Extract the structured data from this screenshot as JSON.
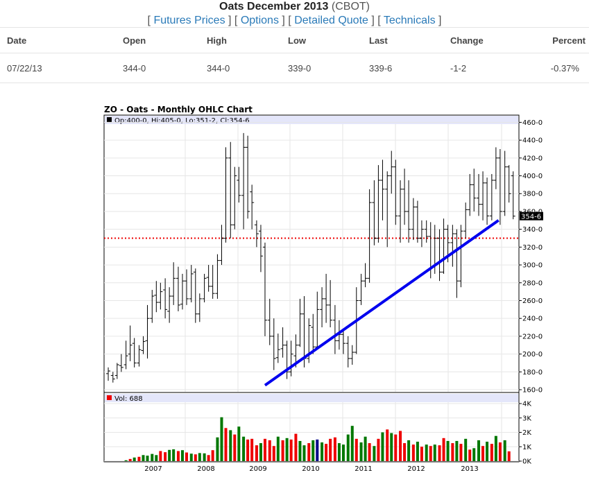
{
  "header": {
    "title": "Oats December 2013",
    "exchange": "(CBOT)",
    "links": [
      {
        "label": "Futures Prices"
      },
      {
        "label": "Options"
      },
      {
        "label": "Detailed Quote"
      },
      {
        "label": "Technicals"
      }
    ]
  },
  "quote": {
    "columns": [
      "Date",
      "Open",
      "High",
      "Low",
      "Last",
      "Change",
      "Percent"
    ],
    "row": {
      "date": "07/22/13",
      "open": "344-0",
      "high": "344-0",
      "low": "339-0",
      "last": "339-6",
      "change": "-1-2",
      "percent": "-0.37%"
    }
  },
  "colors": {
    "up": "#007700",
    "down": "#ee0000",
    "accent": "#0000ee",
    "link": "#2a7ab8",
    "ref_line": "#ee0000"
  },
  "chart_data": {
    "type": "ohlc",
    "title": "ZO - Oats - Monthly OHLC Chart",
    "info_label": "Op:400-0, Hi:405-0, Lo:351-2, Cl:354-6",
    "last_label": "354-6",
    "y_ticks": [
      "160-0",
      "180-0",
      "200-0",
      "220-0",
      "240-0",
      "260-0",
      "280-0",
      "300-0",
      "320-0",
      "340-0",
      "360-0",
      "380-0",
      "400-0",
      "420-0",
      "440-0",
      "460-0"
    ],
    "ylim": [
      160,
      465
    ],
    "year_labels": [
      "2007",
      "2008",
      "2009",
      "2010",
      "2011",
      "2012",
      "2013"
    ],
    "reference_line": 330,
    "trendline": [
      [
        2009.08,
        165
      ],
      [
        2013.55,
        350
      ]
    ],
    "bars": [
      {
        "t": 2006.08,
        "o": 178,
        "h": 185,
        "l": 170,
        "c": 181
      },
      {
        "t": 2006.17,
        "o": 176,
        "h": 180,
        "l": 168,
        "c": 172
      },
      {
        "t": 2006.25,
        "o": 176,
        "h": 190,
        "l": 172,
        "c": 188
      },
      {
        "t": 2006.33,
        "o": 187,
        "h": 200,
        "l": 180,
        "c": 185
      },
      {
        "t": 2006.42,
        "o": 188,
        "h": 215,
        "l": 183,
        "c": 198
      },
      {
        "t": 2006.5,
        "o": 200,
        "h": 232,
        "l": 192,
        "c": 210
      },
      {
        "t": 2006.58,
        "o": 212,
        "h": 218,
        "l": 185,
        "c": 190
      },
      {
        "t": 2006.67,
        "o": 190,
        "h": 210,
        "l": 186,
        "c": 205
      },
      {
        "t": 2006.75,
        "o": 204,
        "h": 220,
        "l": 200,
        "c": 214
      },
      {
        "t": 2006.83,
        "o": 215,
        "h": 255,
        "l": 195,
        "c": 240
      },
      {
        "t": 2006.92,
        "o": 240,
        "h": 272,
        "l": 235,
        "c": 265
      },
      {
        "t": 2007.0,
        "o": 266,
        "h": 282,
        "l": 247,
        "c": 258
      },
      {
        "t": 2007.08,
        "o": 258,
        "h": 280,
        "l": 250,
        "c": 270
      },
      {
        "t": 2007.17,
        "o": 272,
        "h": 285,
        "l": 240,
        "c": 250
      },
      {
        "t": 2007.25,
        "o": 248,
        "h": 275,
        "l": 235,
        "c": 265
      },
      {
        "t": 2007.33,
        "o": 265,
        "h": 303,
        "l": 255,
        "c": 285
      },
      {
        "t": 2007.42,
        "o": 285,
        "h": 298,
        "l": 248,
        "c": 255
      },
      {
        "t": 2007.5,
        "o": 256,
        "h": 290,
        "l": 250,
        "c": 282
      },
      {
        "t": 2007.58,
        "o": 282,
        "h": 295,
        "l": 255,
        "c": 262
      },
      {
        "t": 2007.67,
        "o": 262,
        "h": 300,
        "l": 258,
        "c": 290
      },
      {
        "t": 2007.75,
        "o": 292,
        "h": 296,
        "l": 235,
        "c": 245
      },
      {
        "t": 2007.83,
        "o": 245,
        "h": 268,
        "l": 236,
        "c": 262
      },
      {
        "t": 2007.92,
        "o": 262,
        "h": 290,
        "l": 258,
        "c": 285
      },
      {
        "t": 2008.0,
        "o": 286,
        "h": 300,
        "l": 270,
        "c": 276
      },
      {
        "t": 2008.08,
        "o": 276,
        "h": 300,
        "l": 262,
        "c": 268
      },
      {
        "t": 2008.17,
        "o": 268,
        "h": 312,
        "l": 262,
        "c": 305
      },
      {
        "t": 2008.25,
        "o": 305,
        "h": 345,
        "l": 300,
        "c": 330
      },
      {
        "t": 2008.33,
        "o": 330,
        "h": 432,
        "l": 325,
        "c": 420
      },
      {
        "t": 2008.42,
        "o": 420,
        "h": 438,
        "l": 330,
        "c": 345
      },
      {
        "t": 2008.5,
        "o": 345,
        "h": 410,
        "l": 340,
        "c": 400
      },
      {
        "t": 2008.58,
        "o": 395,
        "h": 410,
        "l": 370,
        "c": 378
      },
      {
        "t": 2008.67,
        "o": 378,
        "h": 448,
        "l": 340,
        "c": 432
      },
      {
        "t": 2008.75,
        "o": 432,
        "h": 445,
        "l": 352,
        "c": 360
      },
      {
        "t": 2008.83,
        "o": 382,
        "h": 390,
        "l": 340,
        "c": 370
      },
      {
        "t": 2008.92,
        "o": 345,
        "h": 350,
        "l": 320,
        "c": 335
      },
      {
        "t": 2009.0,
        "o": 338,
        "h": 345,
        "l": 292,
        "c": 310
      },
      {
        "t": 2009.08,
        "o": 320,
        "h": 325,
        "l": 220,
        "c": 238
      },
      {
        "t": 2009.17,
        "o": 238,
        "h": 262,
        "l": 210,
        "c": 220
      },
      {
        "t": 2009.25,
        "o": 220,
        "h": 240,
        "l": 182,
        "c": 195
      },
      {
        "t": 2009.33,
        "o": 196,
        "h": 223,
        "l": 190,
        "c": 205
      },
      {
        "t": 2009.42,
        "o": 206,
        "h": 230,
        "l": 196,
        "c": 210
      },
      {
        "t": 2009.5,
        "o": 210,
        "h": 215,
        "l": 172,
        "c": 180
      },
      {
        "t": 2009.58,
        "o": 180,
        "h": 215,
        "l": 175,
        "c": 200
      },
      {
        "t": 2009.67,
        "o": 198,
        "h": 222,
        "l": 185,
        "c": 210
      },
      {
        "t": 2009.75,
        "o": 210,
        "h": 262,
        "l": 208,
        "c": 245
      },
      {
        "t": 2009.83,
        "o": 245,
        "h": 265,
        "l": 185,
        "c": 195
      },
      {
        "t": 2009.92,
        "o": 195,
        "h": 240,
        "l": 190,
        "c": 232
      },
      {
        "t": 2010.0,
        "o": 230,
        "h": 245,
        "l": 200,
        "c": 208
      },
      {
        "t": 2010.08,
        "o": 208,
        "h": 270,
        "l": 205,
        "c": 250
      },
      {
        "t": 2010.17,
        "o": 250,
        "h": 275,
        "l": 230,
        "c": 262
      },
      {
        "t": 2010.25,
        "o": 262,
        "h": 290,
        "l": 235,
        "c": 255
      },
      {
        "t": 2010.33,
        "o": 255,
        "h": 283,
        "l": 230,
        "c": 238
      },
      {
        "t": 2010.42,
        "o": 238,
        "h": 255,
        "l": 200,
        "c": 215
      },
      {
        "t": 2010.5,
        "o": 215,
        "h": 238,
        "l": 205,
        "c": 222
      },
      {
        "t": 2010.58,
        "o": 222,
        "h": 226,
        "l": 200,
        "c": 212
      },
      {
        "t": 2010.67,
        "o": 212,
        "h": 220,
        "l": 185,
        "c": 195
      },
      {
        "t": 2010.75,
        "o": 195,
        "h": 210,
        "l": 188,
        "c": 202
      },
      {
        "t": 2010.83,
        "o": 202,
        "h": 275,
        "l": 200,
        "c": 260
      },
      {
        "t": 2010.92,
        "o": 260,
        "h": 290,
        "l": 255,
        "c": 282
      },
      {
        "t": 2011.0,
        "o": 282,
        "h": 302,
        "l": 275,
        "c": 285
      },
      {
        "t": 2011.08,
        "o": 285,
        "h": 385,
        "l": 280,
        "c": 370
      },
      {
        "t": 2011.17,
        "o": 370,
        "h": 395,
        "l": 322,
        "c": 330
      },
      {
        "t": 2011.25,
        "o": 330,
        "h": 412,
        "l": 325,
        "c": 395
      },
      {
        "t": 2011.33,
        "o": 395,
        "h": 418,
        "l": 350,
        "c": 385
      },
      {
        "t": 2011.42,
        "o": 385,
        "h": 405,
        "l": 320,
        "c": 400
      },
      {
        "t": 2011.5,
        "o": 400,
        "h": 428,
        "l": 380,
        "c": 410
      },
      {
        "t": 2011.58,
        "o": 410,
        "h": 418,
        "l": 345,
        "c": 355
      },
      {
        "t": 2011.67,
        "o": 355,
        "h": 395,
        "l": 325,
        "c": 385
      },
      {
        "t": 2011.75,
        "o": 385,
        "h": 408,
        "l": 345,
        "c": 360
      },
      {
        "t": 2011.83,
        "o": 360,
        "h": 395,
        "l": 325,
        "c": 340
      },
      {
        "t": 2011.92,
        "o": 340,
        "h": 375,
        "l": 328,
        "c": 365
      },
      {
        "t": 2012.0,
        "o": 365,
        "h": 372,
        "l": 325,
        "c": 330
      },
      {
        "t": 2012.08,
        "o": 330,
        "h": 350,
        "l": 320,
        "c": 340
      },
      {
        "t": 2012.17,
        "o": 340,
        "h": 350,
        "l": 325,
        "c": 332
      },
      {
        "t": 2012.25,
        "o": 332,
        "h": 348,
        "l": 285,
        "c": 298
      },
      {
        "t": 2012.33,
        "o": 298,
        "h": 345,
        "l": 290,
        "c": 330
      },
      {
        "t": 2012.42,
        "o": 330,
        "h": 340,
        "l": 282,
        "c": 292
      },
      {
        "t": 2012.5,
        "o": 292,
        "h": 352,
        "l": 290,
        "c": 340
      },
      {
        "t": 2012.58,
        "o": 340,
        "h": 345,
        "l": 303,
        "c": 325
      },
      {
        "t": 2012.67,
        "o": 325,
        "h": 345,
        "l": 298,
        "c": 335
      },
      {
        "t": 2012.75,
        "o": 335,
        "h": 340,
        "l": 263,
        "c": 282
      },
      {
        "t": 2012.83,
        "o": 282,
        "h": 345,
        "l": 275,
        "c": 338
      },
      {
        "t": 2012.92,
        "o": 338,
        "h": 370,
        "l": 330,
        "c": 362
      },
      {
        "t": 2013.0,
        "o": 362,
        "h": 402,
        "l": 355,
        "c": 390
      },
      {
        "t": 2013.08,
        "o": 390,
        "h": 408,
        "l": 360,
        "c": 375
      },
      {
        "t": 2013.17,
        "o": 375,
        "h": 402,
        "l": 355,
        "c": 368
      },
      {
        "t": 2013.25,
        "o": 368,
        "h": 405,
        "l": 350,
        "c": 392
      },
      {
        "t": 2013.33,
        "o": 392,
        "h": 398,
        "l": 345,
        "c": 355
      },
      {
        "t": 2013.42,
        "o": 355,
        "h": 402,
        "l": 350,
        "c": 395
      },
      {
        "t": 2013.5,
        "o": 395,
        "h": 432,
        "l": 385,
        "c": 420
      },
      {
        "t": 2013.58,
        "o": 420,
        "h": 430,
        "l": 345,
        "c": 360
      },
      {
        "t": 2013.67,
        "o": 360,
        "h": 428,
        "l": 355,
        "c": 410
      },
      {
        "t": 2013.75,
        "o": 410,
        "h": 412,
        "l": 370,
        "c": 380
      },
      {
        "t": 2013.83,
        "o": 400,
        "h": 405,
        "l": 351.25,
        "c": 354.75
      }
    ],
    "volume": {
      "label": "Vol: 688",
      "y_ticks": [
        "0K",
        "1K",
        "2K",
        "3K",
        "4K"
      ],
      "ylim": [
        0,
        4000
      ],
      "values": [
        {
          "t": 2006.42,
          "v": 60,
          "up": true
        },
        {
          "t": 2006.5,
          "v": 150,
          "up": false
        },
        {
          "t": 2006.58,
          "v": 250,
          "up": true
        },
        {
          "t": 2006.67,
          "v": 300,
          "up": false
        },
        {
          "t": 2006.75,
          "v": 420,
          "up": true
        },
        {
          "t": 2006.83,
          "v": 380,
          "up": true
        },
        {
          "t": 2006.92,
          "v": 500,
          "up": true
        },
        {
          "t": 2007.0,
          "v": 420,
          "up": true
        },
        {
          "t": 2007.08,
          "v": 700,
          "up": false
        },
        {
          "t": 2007.17,
          "v": 620,
          "up": false
        },
        {
          "t": 2007.25,
          "v": 780,
          "up": true
        },
        {
          "t": 2007.33,
          "v": 820,
          "up": true
        },
        {
          "t": 2007.42,
          "v": 700,
          "up": false
        },
        {
          "t": 2007.5,
          "v": 760,
          "up": true
        },
        {
          "t": 2007.58,
          "v": 600,
          "up": false
        },
        {
          "t": 2007.67,
          "v": 520,
          "up": true
        },
        {
          "t": 2007.75,
          "v": 470,
          "up": false
        },
        {
          "t": 2007.83,
          "v": 560,
          "up": true
        },
        {
          "t": 2007.92,
          "v": 540,
          "up": true
        },
        {
          "t": 2008.0,
          "v": 420,
          "up": false
        },
        {
          "t": 2008.08,
          "v": 760,
          "up": false
        },
        {
          "t": 2008.17,
          "v": 1650,
          "up": true
        },
        {
          "t": 2008.25,
          "v": 3050,
          "up": true
        },
        {
          "t": 2008.33,
          "v": 2300,
          "up": false
        },
        {
          "t": 2008.42,
          "v": 2150,
          "up": true
        },
        {
          "t": 2008.5,
          "v": 1850,
          "up": false
        },
        {
          "t": 2008.58,
          "v": 2400,
          "up": true
        },
        {
          "t": 2008.67,
          "v": 1700,
          "up": true
        },
        {
          "t": 2008.75,
          "v": 1500,
          "up": false
        },
        {
          "t": 2008.83,
          "v": 1550,
          "up": false
        },
        {
          "t": 2008.92,
          "v": 1100,
          "up": false
        },
        {
          "t": 2009.0,
          "v": 1250,
          "up": true
        },
        {
          "t": 2009.08,
          "v": 1550,
          "up": false
        },
        {
          "t": 2009.17,
          "v": 1450,
          "up": false
        },
        {
          "t": 2009.25,
          "v": 1050,
          "up": false
        },
        {
          "t": 2009.33,
          "v": 1700,
          "up": true
        },
        {
          "t": 2009.42,
          "v": 1450,
          "up": false
        },
        {
          "t": 2009.5,
          "v": 1600,
          "up": true
        },
        {
          "t": 2009.58,
          "v": 1500,
          "up": false
        },
        {
          "t": 2009.67,
          "v": 1900,
          "up": false
        },
        {
          "t": 2009.75,
          "v": 1400,
          "up": true
        },
        {
          "t": 2009.83,
          "v": 1100,
          "up": true
        },
        {
          "t": 2009.92,
          "v": 1250,
          "up": false
        },
        {
          "t": 2010.0,
          "v": 1450,
          "up": true
        },
        {
          "t": 2010.08,
          "v": 1500,
          "up": true,
          "blue": true
        },
        {
          "t": 2010.17,
          "v": 1300,
          "up": true
        },
        {
          "t": 2010.25,
          "v": 1200,
          "up": false
        },
        {
          "t": 2010.33,
          "v": 1550,
          "up": false
        },
        {
          "t": 2010.42,
          "v": 1650,
          "up": false
        },
        {
          "t": 2010.5,
          "v": 1250,
          "up": true
        },
        {
          "t": 2010.58,
          "v": 1150,
          "up": true
        },
        {
          "t": 2010.67,
          "v": 1850,
          "up": true
        },
        {
          "t": 2010.75,
          "v": 2450,
          "up": true
        },
        {
          "t": 2010.83,
          "v": 1550,
          "up": false
        },
        {
          "t": 2010.92,
          "v": 1300,
          "up": true
        },
        {
          "t": 2011.0,
          "v": 1700,
          "up": true
        },
        {
          "t": 2011.08,
          "v": 1250,
          "up": false
        },
        {
          "t": 2011.17,
          "v": 1050,
          "up": true
        },
        {
          "t": 2011.25,
          "v": 1550,
          "up": false
        },
        {
          "t": 2011.33,
          "v": 2000,
          "up": true
        },
        {
          "t": 2011.42,
          "v": 2200,
          "up": false
        },
        {
          "t": 2011.5,
          "v": 1950,
          "up": true
        },
        {
          "t": 2011.58,
          "v": 1850,
          "up": false
        },
        {
          "t": 2011.67,
          "v": 2100,
          "up": false
        },
        {
          "t": 2011.75,
          "v": 1250,
          "up": false
        },
        {
          "t": 2011.83,
          "v": 1450,
          "up": true
        },
        {
          "t": 2011.92,
          "v": 1150,
          "up": false
        },
        {
          "t": 2012.0,
          "v": 1350,
          "up": true
        },
        {
          "t": 2012.08,
          "v": 1000,
          "up": false
        },
        {
          "t": 2012.17,
          "v": 1150,
          "up": true
        },
        {
          "t": 2012.25,
          "v": 1050,
          "up": false
        },
        {
          "t": 2012.33,
          "v": 1150,
          "up": true
        },
        {
          "t": 2012.42,
          "v": 1100,
          "up": false
        },
        {
          "t": 2012.5,
          "v": 1600,
          "up": false
        },
        {
          "t": 2012.58,
          "v": 1400,
          "up": true
        },
        {
          "t": 2012.67,
          "v": 1250,
          "up": false
        },
        {
          "t": 2012.75,
          "v": 1400,
          "up": true
        },
        {
          "t": 2012.83,
          "v": 1200,
          "up": false
        },
        {
          "t": 2012.92,
          "v": 1550,
          "up": true
        },
        {
          "t": 2013.0,
          "v": 800,
          "up": false
        },
        {
          "t": 2013.08,
          "v": 900,
          "up": true
        },
        {
          "t": 2013.17,
          "v": 1450,
          "up": true
        },
        {
          "t": 2013.25,
          "v": 1050,
          "up": false
        },
        {
          "t": 2013.33,
          "v": 1350,
          "up": true
        },
        {
          "t": 2013.42,
          "v": 1200,
          "up": false
        },
        {
          "t": 2013.5,
          "v": 1750,
          "up": true
        },
        {
          "t": 2013.58,
          "v": 1300,
          "up": false
        },
        {
          "t": 2013.67,
          "v": 1450,
          "up": true
        },
        {
          "t": 2013.75,
          "v": 680,
          "up": false
        }
      ]
    }
  }
}
